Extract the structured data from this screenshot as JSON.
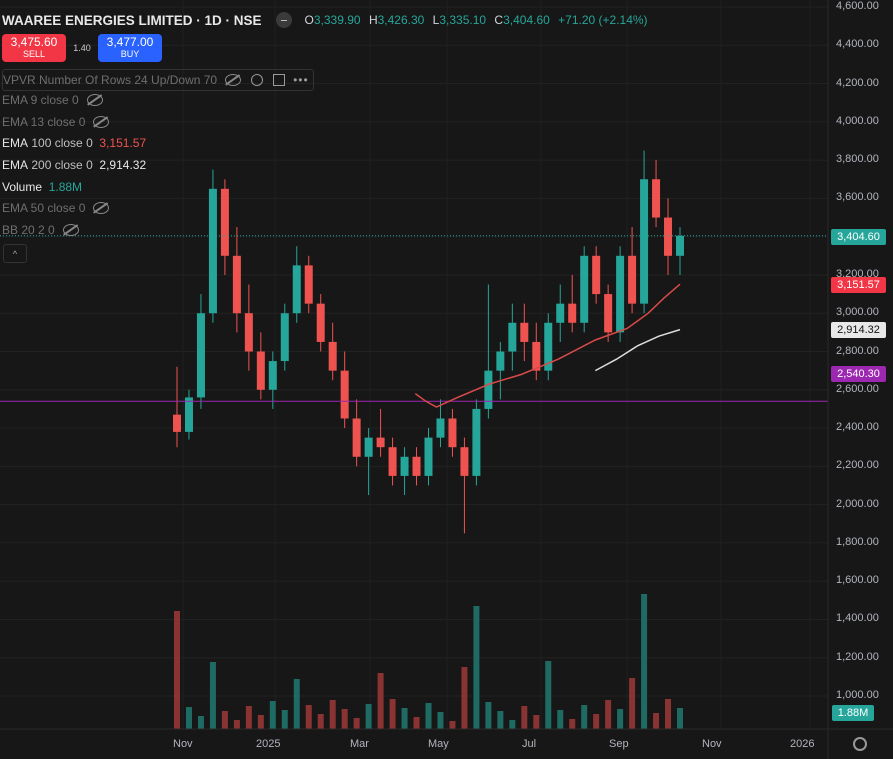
{
  "header": {
    "symbol": "WAAREE ENERGIES LIMITED · 1D · NSE",
    "open_k": "O",
    "open": "3,339.90",
    "high_k": "H",
    "high": "3,426.30",
    "low_k": "L",
    "low": "3,335.10",
    "close_k": "C",
    "close": "3,404.60",
    "change": "+71.20 (+2.14%)"
  },
  "trade": {
    "sell_price": "3,475.60",
    "sell_label": "SELL",
    "spread": "1.40",
    "buy_price": "3,477.00",
    "buy_label": "BUY"
  },
  "indicators": {
    "vpvr": "VPVR Number Of Rows 24 Up/Down 70",
    "ema9": "EMA 9 close 0",
    "ema13": "EMA 13 close 0",
    "ema100_label": "EMA",
    "ema100_params": "100 close 0",
    "ema100_value": "3,151.57",
    "ema200_label": "EMA",
    "ema200_params": "200 close 0",
    "ema200_value": "2,914.32",
    "volume_label": "Volume",
    "volume_value": "1.88M",
    "ema50": "EMA 50 close 0",
    "bb": "BB 20 2 0",
    "collapse": "^"
  },
  "price_axis": {
    "ticks": [
      "4,600.00",
      "4,400.00",
      "4,200.00",
      "4,000.00",
      "3,800.00",
      "3,600.00",
      "3,400.00",
      "3,200.00",
      "3,000.00",
      "2,800.00",
      "2,600.00",
      "2,400.00",
      "2,200.00",
      "2,000.00",
      "1,800.00",
      "1,600.00",
      "1,400.00",
      "1,200.00",
      "1,000.00"
    ],
    "last_price": "3,404.60",
    "ema100_price": "3,151.57",
    "ema200_price": "2,914.32",
    "hline_price": "2,540.30",
    "volume_price": "1.88M"
  },
  "time_axis": [
    "Nov",
    "2025",
    "Mar",
    "May",
    "Jul",
    "Sep",
    "Nov",
    "2026"
  ],
  "colors": {
    "up": "#26a69a",
    "down": "#ef5350",
    "ema100": "#f23645",
    "ema200": "#e0e0e0",
    "hline": "#9c27b0",
    "bg": "#171717"
  },
  "chart_data": {
    "type": "candlestick",
    "y_range": [
      1750,
      4620
    ],
    "price_line": 3404.6,
    "horizontal_line": 2540.3,
    "ema100": [
      [
        2025.28,
        2580
      ],
      [
        2025.3,
        2540
      ],
      [
        2025.32,
        2510
      ],
      [
        2025.36,
        2560
      ],
      [
        2025.42,
        2630
      ],
      [
        2025.48,
        2680
      ],
      [
        2025.55,
        2760
      ],
      [
        2025.62,
        2860
      ],
      [
        2025.68,
        2920
      ],
      [
        2025.72,
        3000
      ],
      [
        2025.75,
        3080
      ],
      [
        2025.78,
        3151.57
      ]
    ],
    "ema200": [
      [
        2025.62,
        2700
      ],
      [
        2025.66,
        2760
      ],
      [
        2025.7,
        2830
      ],
      [
        2025.74,
        2880
      ],
      [
        2025.78,
        2914.32
      ]
    ],
    "candles_note": "daily candles Oct 2024 – Oct 2025",
    "candles": [
      [
        2470,
        2720,
        2300,
        2380
      ],
      [
        2380,
        2600,
        2340,
        2560
      ],
      [
        2560,
        3100,
        2500,
        3000
      ],
      [
        3000,
        3750,
        2950,
        3650
      ],
      [
        3650,
        3700,
        3200,
        3300
      ],
      [
        3300,
        3450,
        2900,
        3000
      ],
      [
        3000,
        3150,
        2700,
        2800
      ],
      [
        2800,
        2900,
        2550,
        2600
      ],
      [
        2600,
        2800,
        2500,
        2750
      ],
      [
        2750,
        3050,
        2700,
        3000
      ],
      [
        3000,
        3350,
        2950,
        3250
      ],
      [
        3250,
        3300,
        3000,
        3050
      ],
      [
        3050,
        3100,
        2800,
        2850
      ],
      [
        2850,
        2950,
        2650,
        2700
      ],
      [
        2700,
        2800,
        2400,
        2450
      ],
      [
        2450,
        2550,
        2200,
        2250
      ],
      [
        2250,
        2400,
        2050,
        2350
      ],
      [
        2350,
        2500,
        2250,
        2300
      ],
      [
        2300,
        2350,
        2100,
        2150
      ],
      [
        2150,
        2300,
        2050,
        2250
      ],
      [
        2250,
        2300,
        2100,
        2150
      ],
      [
        2150,
        2400,
        2100,
        2350
      ],
      [
        2350,
        2550,
        2300,
        2450
      ],
      [
        2450,
        2500,
        2250,
        2300
      ],
      [
        2300,
        2350,
        1850,
        2150
      ],
      [
        2150,
        2550,
        2100,
        2500
      ],
      [
        2500,
        3150,
        2450,
        2700
      ],
      [
        2700,
        2850,
        2550,
        2800
      ],
      [
        2800,
        3050,
        2700,
        2950
      ],
      [
        2950,
        3050,
        2750,
        2850
      ],
      [
        2850,
        2950,
        2650,
        2700
      ],
      [
        2700,
        3000,
        2650,
        2950
      ],
      [
        2950,
        3150,
        2850,
        3050
      ],
      [
        3050,
        3200,
        2900,
        2950
      ],
      [
        2950,
        3350,
        2900,
        3300
      ],
      [
        3300,
        3350,
        3050,
        3100
      ],
      [
        3100,
        3150,
        2850,
        2900
      ],
      [
        2900,
        3350,
        2850,
        3300
      ],
      [
        3300,
        3450,
        3000,
        3050
      ],
      [
        3050,
        3850,
        3000,
        3700
      ],
      [
        3700,
        3800,
        3450,
        3500
      ],
      [
        3500,
        3600,
        3200,
        3300
      ],
      [
        3300,
        3450,
        3200,
        3404.6
      ]
    ]
  }
}
